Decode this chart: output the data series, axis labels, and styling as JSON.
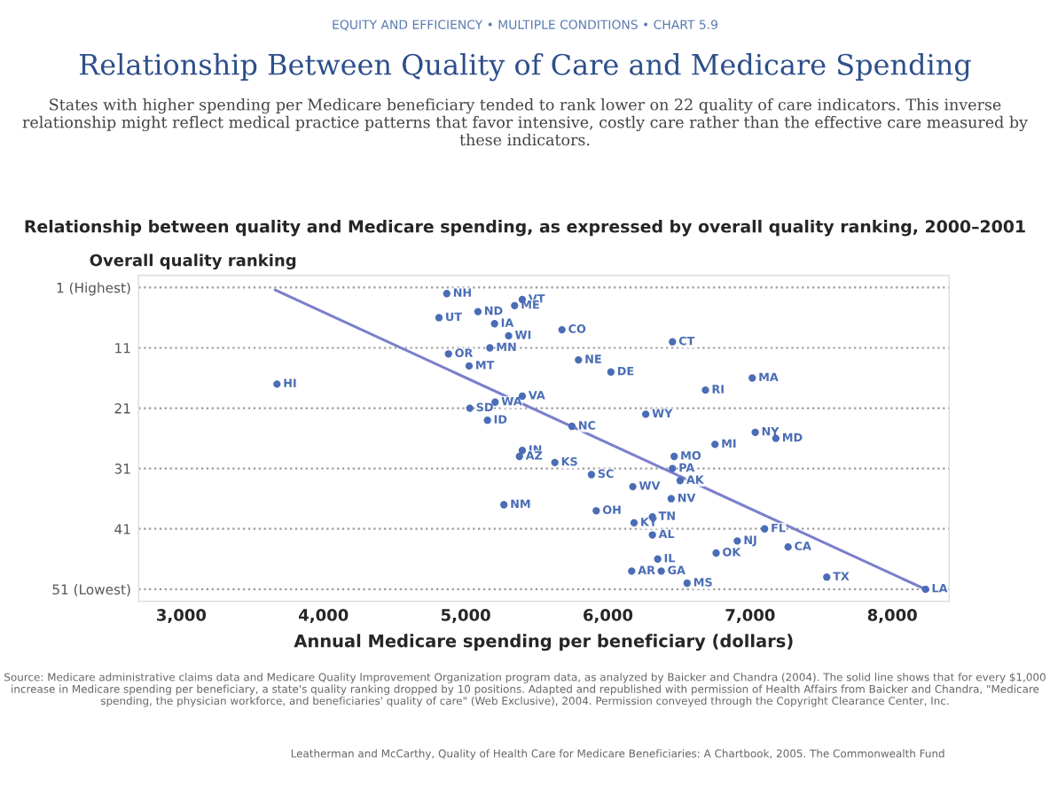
{
  "chart_data": {
    "type": "scatter",
    "title": "Relationship Between Quality of Care and Medicare Spending",
    "subtitle": "States with higher spending per Medicare beneficiary tended to rank lower on 22 quality of care indicators. This inverse relationship might reflect medical practice patterns that favor intensive, costly care rather than the effective care measured by these indicators.",
    "xlabel": "Annual Medicare spending per beneficiary (dollars)",
    "ylabel": "Overall quality ranking",
    "xlim": [
      2700,
      8400
    ],
    "xticks": [
      {
        "value": 3000,
        "label": "3,000"
      },
      {
        "value": 4000,
        "label": "4,000"
      },
      {
        "value": 5000,
        "label": "5,000"
      },
      {
        "value": 6000,
        "label": "6,000"
      },
      {
        "value": 7000,
        "label": "7,000"
      },
      {
        "value": 8000,
        "label": "8,000"
      }
    ],
    "ylim": [
      53,
      -1
    ],
    "yticks": [
      {
        "value": 1,
        "label": "1 (Highest)"
      },
      11,
      21,
      31,
      41,
      {
        "value": 51,
        "label": "51 (Lowest)"
      }
    ],
    "grid": "y",
    "series": [
      {
        "marker": "circle",
        "color": "#4a6db5",
        "x": [
          4867,
          5398,
          5344,
          5086,
          4812,
          5203,
          5302,
          5170,
          4879,
          5024,
          3673,
          5398,
          5207,
          5029,
          5153,
          5398,
          5378,
          5627,
          5677,
          6454,
          5793,
          6021,
          6686,
          7015,
          6266,
          5747,
          6753,
          7036,
          7181,
          6466,
          5884,
          6454,
          6508,
          6175,
          6445,
          5918,
          6313,
          6184,
          6313,
          7102,
          6910,
          7267,
          6761,
          6350,
          6375,
          6167,
          6557,
          7539,
          8233,
          5269
        ],
        "values": [
          2,
          3,
          4,
          5,
          6,
          7,
          9,
          11,
          12,
          14,
          17,
          19,
          20,
          21,
          23,
          28,
          29,
          30,
          8,
          10,
          13,
          15,
          18,
          16,
          22,
          24,
          27,
          25,
          26,
          29,
          32,
          31,
          33,
          34,
          36,
          38,
          39,
          40,
          42,
          41,
          43,
          44,
          45,
          46,
          48,
          48,
          50,
          49,
          51,
          37
        ]
      },
      {
        "type": "line",
        "marker": "none",
        "color": "#7b7fcc",
        "x": [
          3660,
          8250
        ],
        "values": [
          1.4,
          51.2
        ]
      }
    ],
    "annotations": [
      "EQUITY AND EFFICIENCY • MULTIPLE CONDITIONS • CHART 5.9",
      "Relationship between quality and Medicare spending, as expressed by overall quality ranking, 2000–2001",
      "Source: Medicare administrative claims data and Medicare Quality Improvement Organization program data, as analyzed by Baicker and Chandra (2004). The solid line shows that for every $1,000 increase in Medicare spending per beneficiary, a state's quality ranking dropped by 10 positions. Adapted and republished with permission of Health Affairs from Baicker and Chandra, \"Medicare spending, the physician workforce, and beneficiaries' quality of care\" (Web Exclusive), 2004. Permission conveyed through the Copyright Clearance Center, Inc.",
      "Leatherman and McCarthy, Quality of Health Care for Medicare Beneficiaries: A Chartbook, 2005. The Commonwealth Fund",
      {
        "text": "NH",
        "x": 4867,
        "y": 2
      },
      {
        "text": "VT",
        "x": 5398,
        "y": 3
      },
      {
        "text": "ME",
        "x": 5344,
        "y": 4
      },
      {
        "text": "ND",
        "x": 5086,
        "y": 5
      },
      {
        "text": "UT",
        "x": 4812,
        "y": 6
      },
      {
        "text": "IA",
        "x": 5203,
        "y": 7
      },
      {
        "text": "WI",
        "x": 5302,
        "y": 9
      },
      {
        "text": "MN",
        "x": 5170,
        "y": 11
      },
      {
        "text": "OR",
        "x": 4879,
        "y": 12
      },
      {
        "text": "MT",
        "x": 5024,
        "y": 14
      },
      {
        "text": "HI",
        "x": 3673,
        "y": 17
      },
      {
        "text": "VA",
        "x": 5398,
        "y": 19
      },
      {
        "text": "WA",
        "x": 5207,
        "y": 20
      },
      {
        "text": "SD",
        "x": 5029,
        "y": 21
      },
      {
        "text": "ID",
        "x": 5153,
        "y": 23
      },
      {
        "text": "IN",
        "x": 5398,
        "y": 28
      },
      {
        "text": "AZ",
        "x": 5378,
        "y": 29
      },
      {
        "text": "KS",
        "x": 5627,
        "y": 30
      },
      {
        "text": "CO",
        "x": 5677,
        "y": 8
      },
      {
        "text": "CT",
        "x": 6454,
        "y": 10
      },
      {
        "text": "NE",
        "x": 5793,
        "y": 13
      },
      {
        "text": "DE",
        "x": 6021,
        "y": 15
      },
      {
        "text": "RI",
        "x": 6686,
        "y": 18
      },
      {
        "text": "MA",
        "x": 7015,
        "y": 16
      },
      {
        "text": "WY",
        "x": 6266,
        "y": 22
      },
      {
        "text": "NC",
        "x": 5747,
        "y": 24
      },
      {
        "text": "MI",
        "x": 6753,
        "y": 27
      },
      {
        "text": "NY",
        "x": 7036,
        "y": 25
      },
      {
        "text": "MD",
        "x": 7181,
        "y": 26
      },
      {
        "text": "MO",
        "x": 6466,
        "y": 29
      },
      {
        "text": "SC",
        "x": 5884,
        "y": 32
      },
      {
        "text": "PA",
        "x": 6454,
        "y": 31
      },
      {
        "text": "AK",
        "x": 6508,
        "y": 33
      },
      {
        "text": "WV",
        "x": 6175,
        "y": 34
      },
      {
        "text": "NV",
        "x": 6445,
        "y": 36
      },
      {
        "text": "OH",
        "x": 5918,
        "y": 38
      },
      {
        "text": "TN",
        "x": 6313,
        "y": 39
      },
      {
        "text": "KY",
        "x": 6184,
        "y": 40
      },
      {
        "text": "AL",
        "x": 6313,
        "y": 42
      },
      {
        "text": "FL",
        "x": 7102,
        "y": 41
      },
      {
        "text": "NJ",
        "x": 6910,
        "y": 43
      },
      {
        "text": "CA",
        "x": 7267,
        "y": 44
      },
      {
        "text": "OK",
        "x": 6761,
        "y": 45
      },
      {
        "text": "IL",
        "x": 6350,
        "y": 46
      },
      {
        "text": "GA",
        "x": 6375,
        "y": 48
      },
      {
        "text": "AR",
        "x": 6167,
        "y": 48
      },
      {
        "text": "MS",
        "x": 6557,
        "y": 50
      },
      {
        "text": "TX",
        "x": 7539,
        "y": 49
      },
      {
        "text": "LA",
        "x": 8233,
        "y": 51
      },
      {
        "text": "NM",
        "x": 5269,
        "y": 37
      }
    ]
  }
}
